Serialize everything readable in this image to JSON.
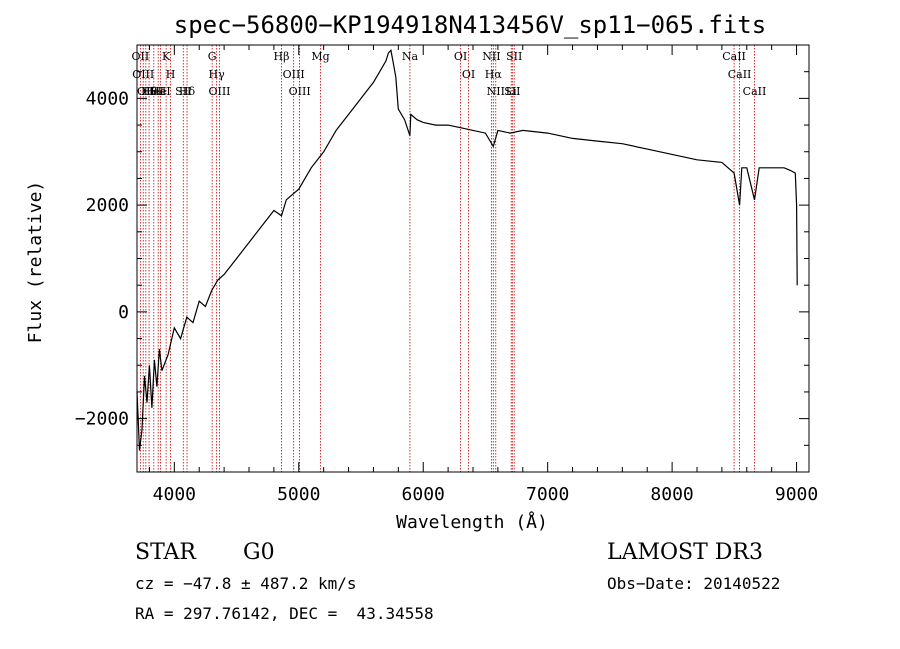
{
  "chart_data": {
    "type": "line",
    "title": "spec−56800−KP194918N413456V_sp11−065.fits",
    "xlabel": "Wavelength (Å)",
    "ylabel": "Flux (relative)",
    "xlim": [
      3700,
      9100
    ],
    "ylim": [
      -3000,
      5000
    ],
    "x_ticks": [
      4000,
      5000,
      6000,
      7000,
      8000,
      9000
    ],
    "x_tick_labels": [
      "4000",
      "5000",
      "6000",
      "7000",
      "8000",
      "9000"
    ],
    "y_ticks": [
      -2000,
      0,
      2000,
      4000
    ],
    "y_tick_labels": [
      "−2000",
      "0",
      "2000",
      "4000"
    ],
    "series": [
      {
        "name": "spectrum",
        "x": [
          3700,
          3720,
          3740,
          3760,
          3780,
          3800,
          3820,
          3840,
          3860,
          3880,
          3900,
          3950,
          4000,
          4050,
          4100,
          4150,
          4200,
          4250,
          4300,
          4350,
          4400,
          4500,
          4600,
          4700,
          4800,
          4861,
          4900,
          5000,
          5100,
          5200,
          5300,
          5400,
          5500,
          5600,
          5650,
          5700,
          5720,
          5740,
          5760,
          5780,
          5800,
          5850,
          5893,
          5900,
          5950,
          6000,
          6100,
          6200,
          6300,
          6400,
          6500,
          6563,
          6600,
          6700,
          6800,
          7000,
          7200,
          7400,
          7600,
          7800,
          8000,
          8200,
          8400,
          8498,
          8542,
          8560,
          8600,
          8662,
          8700,
          8800,
          8900,
          8950,
          8990,
          9000,
          9005
        ],
        "y": [
          -1500,
          -2600,
          -2200,
          -1200,
          -1700,
          -1000,
          -1800,
          -900,
          -1400,
          -700,
          -1100,
          -800,
          -300,
          -500,
          -100,
          -200,
          200,
          100,
          400,
          600,
          700,
          1000,
          1300,
          1600,
          1900,
          1800,
          2100,
          2300,
          2700,
          3000,
          3400,
          3700,
          4000,
          4300,
          4500,
          4700,
          4850,
          4900,
          4650,
          4400,
          3800,
          3600,
          3300,
          3700,
          3600,
          3550,
          3500,
          3500,
          3450,
          3400,
          3350,
          3100,
          3400,
          3350,
          3400,
          3350,
          3250,
          3200,
          3150,
          3050,
          2950,
          2850,
          2800,
          2600,
          2000,
          2700,
          2700,
          2100,
          2700,
          2700,
          2700,
          2650,
          2600,
          2000,
          500
        ]
      }
    ],
    "spectral_lines": [
      {
        "wave": 3727,
        "label": "OII"
      },
      {
        "wave": 3750,
        "label": "OIII"
      },
      {
        "wave": 3771,
        "label": "OII"
      },
      {
        "wave": 3797,
        "label": "Hθ"
      },
      {
        "wave": 3835,
        "label": "HeI"
      },
      {
        "wave": 3870,
        "label": "SII"
      },
      {
        "wave": 3889,
        "label": "HeI"
      },
      {
        "wave": 3934,
        "label": "K"
      },
      {
        "wave": 3970,
        "label": "H"
      },
      {
        "wave": 4072,
        "label": "SII"
      },
      {
        "wave": 4102,
        "label": "Hδ"
      },
      {
        "wave": 4304,
        "label": "G"
      },
      {
        "wave": 4340,
        "label": "Hγ"
      },
      {
        "wave": 4363,
        "label": "OIII"
      },
      {
        "wave": 4861,
        "label": "Hβ"
      },
      {
        "wave": 4959,
        "label": "OIII"
      },
      {
        "wave": 5007,
        "label": "OIII"
      },
      {
        "wave": 5175,
        "label": "Mg"
      },
      {
        "wave": 5893,
        "label": "Na"
      },
      {
        "wave": 6300,
        "label": "OI"
      },
      {
        "wave": 6364,
        "label": "OI"
      },
      {
        "wave": 6548,
        "label": "NII"
      },
      {
        "wave": 6563,
        "label": "Hα"
      },
      {
        "wave": 6583,
        "label": "NII"
      },
      {
        "wave": 6707,
        "label": "Li"
      },
      {
        "wave": 6716,
        "label": "SII"
      },
      {
        "wave": 6731,
        "label": "SII"
      },
      {
        "wave": 8498,
        "label": "CaII"
      },
      {
        "wave": 8542,
        "label": "CaII"
      },
      {
        "wave": 8662,
        "label": "CaII"
      }
    ]
  },
  "info": {
    "class_label": "STAR",
    "subclass": "G0",
    "survey": "LAMOST DR3",
    "cz_text": "cz = −47.8 ± 487.2 km/s",
    "obs_date_text": "Obs−Date: 20140522",
    "radec_text": "RA = 297.76142, DEC =  43.34558"
  },
  "colors": {
    "line_marker": "#cc0000",
    "spectrum": "#000000",
    "axes": "#000000"
  }
}
